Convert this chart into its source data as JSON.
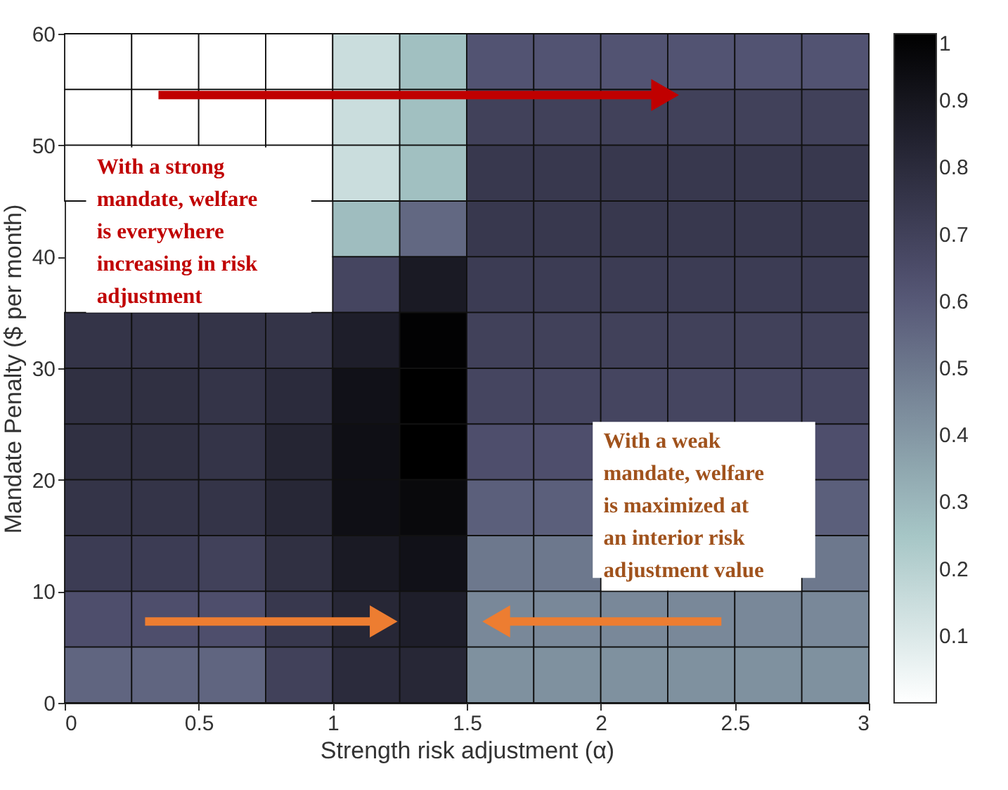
{
  "chart_data": {
    "type": "heatmap",
    "xlabel": "Strength risk adjustment (α)",
    "ylabel": "Mandate Penalty ($ per month)",
    "x": [
      0.125,
      0.375,
      0.625,
      0.875,
      1.125,
      1.375,
      1.625,
      1.875,
      2.125,
      2.375,
      2.625,
      2.875
    ],
    "y": [
      57.5,
      52.5,
      47.5,
      42.5,
      37.5,
      32.5,
      27.5,
      22.5,
      17.5,
      12.5,
      7.5,
      2.5
    ],
    "cells": [
      [
        0,
        0,
        0,
        0,
        0.15,
        0.27,
        0.62,
        0.62,
        0.62,
        0.62,
        0.62,
        0.62
      ],
      [
        0,
        0,
        0,
        0,
        0.15,
        0.27,
        0.7,
        0.7,
        0.7,
        0.7,
        0.7,
        0.7
      ],
      [
        0,
        null,
        null,
        0,
        0.15,
        0.27,
        0.74,
        0.74,
        0.74,
        0.74,
        0.74,
        0.74
      ],
      [
        null,
        null,
        null,
        null,
        0.28,
        0.55,
        0.74,
        0.74,
        0.74,
        0.74,
        0.74,
        0.74
      ],
      [
        null,
        null,
        null,
        null,
        0.68,
        0.88,
        0.72,
        0.72,
        0.72,
        0.72,
        0.72,
        0.72
      ],
      [
        0.76,
        0.76,
        0.76,
        0.76,
        0.86,
        0.99,
        0.7,
        0.7,
        0.7,
        0.7,
        0.7,
        0.7
      ],
      [
        0.78,
        0.78,
        0.76,
        0.8,
        0.92,
        1.0,
        0.68,
        0.68,
        0.68,
        0.68,
        0.68,
        0.68
      ],
      [
        0.78,
        0.78,
        0.76,
        0.83,
        0.93,
        1.0,
        0.64,
        0.64,
        null,
        null,
        null,
        0.64
      ],
      [
        0.76,
        0.76,
        0.76,
        0.82,
        0.93,
        0.96,
        0.58,
        0.58,
        null,
        null,
        null,
        0.58
      ],
      [
        0.72,
        0.72,
        0.7,
        0.78,
        0.88,
        0.92,
        0.5,
        0.5,
        null,
        null,
        null,
        0.5
      ],
      [
        0.64,
        0.64,
        0.64,
        0.74,
        0.82,
        0.86,
        0.45,
        0.45,
        0.45,
        0.45,
        0.45,
        0.45
      ],
      [
        0.56,
        0.56,
        0.56,
        0.7,
        0.8,
        0.82,
        0.42,
        0.42,
        0.42,
        0.42,
        0.42,
        0.42
      ]
    ],
    "xlim": [
      0,
      3
    ],
    "xticks": [
      0,
      0.5,
      1,
      1.5,
      2,
      2.5,
      3
    ],
    "ylim": [
      0,
      60
    ],
    "yticks": [
      0,
      10,
      20,
      30,
      40,
      50,
      60
    ],
    "clim": [
      0,
      1
    ],
    "cticks": [
      0.1,
      0.2,
      0.3,
      0.4,
      0.5,
      0.6,
      0.7,
      0.8,
      0.9,
      1
    ],
    "grid": false,
    "annotations": [
      "With a strong\nmandate, welfare\nis everywhere\nincreasing in risk\nadjustment",
      "With a weak\nmandate, welfare\nis maximized at\nan interior risk\nadjustment value"
    ]
  }
}
